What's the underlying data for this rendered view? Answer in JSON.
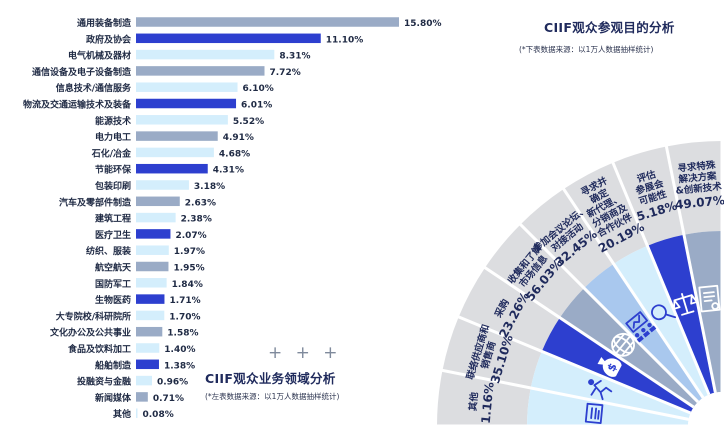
{
  "left_chart": {
    "title": "CIIF观众业务领域分析",
    "note": "(*左表数据来源：以1万人数据抽样统计)",
    "decoration": "+ + +"
  },
  "right_chart": {
    "title": "CIIF观众参观目的分析",
    "note": "(*下表数据来源：以1万人数据抽样统计)"
  },
  "chart_data": [
    {
      "type": "bar",
      "orientation": "horizontal",
      "title": "CIIF观众业务领域分析",
      "categories": [
        "通用装备制造",
        "政府及协会",
        "电气机械及器材",
        "通信设备及电子设备制造",
        "信息技术/通信服务",
        "物流及交通运输技术及装备",
        "能源技术",
        "电力电工",
        "石化/冶金",
        "节能环保",
        "包装印刷",
        "汽车及零部件制造",
        "建筑工程",
        "医疗卫生",
        "纺织、服装",
        "航空航天",
        "国防军工",
        "生物医药",
        "大专院校/科研院所",
        "文化办公及公共事业",
        "食品及饮料加工",
        "船舶制造",
        "投融资与金融",
        "新闻媒体",
        "其他"
      ],
      "values": [
        15.8,
        11.1,
        8.31,
        7.72,
        6.1,
        6.01,
        5.52,
        4.91,
        4.68,
        4.31,
        3.18,
        2.63,
        2.38,
        2.07,
        1.97,
        1.95,
        1.84,
        1.71,
        1.7,
        1.58,
        1.4,
        1.38,
        0.96,
        0.71,
        0.08
      ],
      "labels": [
        "15.80%",
        "11.10%",
        "8.31%",
        "7.72%",
        "6.10%",
        "6.01%",
        "5.52%",
        "4.91%",
        "4.68%",
        "4.31%",
        "3.18%",
        "2.63%",
        "2.38%",
        "2.07%",
        "1.97%",
        "1.95%",
        "1.84%",
        "1.71%",
        "1.70%",
        "1.58%",
        "1.40%",
        "1.38%",
        "0.96%",
        "0.71%",
        "0.08%"
      ],
      "colors": [
        "#9aabc6",
        "#2d3fcf",
        "#d4eefc",
        "#9aabc6",
        "#d4eefc",
        "#2d3fcf",
        "#d4eefc",
        "#9aabc6",
        "#d4eefc",
        "#2d3fcf",
        "#d4eefc",
        "#9aabc6",
        "#d4eefc",
        "#2d3fcf",
        "#d4eefc",
        "#9aabc6",
        "#d4eefc",
        "#2d3fcf",
        "#d4eefc",
        "#9aabc6",
        "#d4eefc",
        "#2d3fcf",
        "#d4eefc",
        "#9aabc6",
        "#d4eefc"
      ],
      "unit": "%",
      "grid": false,
      "legend": "none"
    },
    {
      "type": "pie",
      "style": "fan",
      "title": "CIIF观众参观目的分析",
      "categories": [
        "其他",
        "联络供应商和销售商",
        "采购",
        "收集和了解市场信息",
        "参加会议论坛、对接活动",
        "寻求并确定新代理、分销商及合作伙伴",
        "评估参展会可能性",
        "寻求特殊解决方案&创新技术"
      ],
      "label_lines": [
        [
          "其他"
        ],
        [
          "联络供应商和",
          "销售商"
        ],
        [
          "采购"
        ],
        [
          "收集和了解",
          "市场信息"
        ],
        [
          "参加会议论坛、",
          "对接活动"
        ],
        [
          "寻求并",
          "确定",
          "新代理、",
          "分销商及",
          "合作伙伴"
        ],
        [
          "评估",
          "参展会",
          "可能性"
        ],
        [
          "寻求特殊",
          "解决方案",
          "&创新技术"
        ]
      ],
      "values": [
        1.16,
        35.1,
        23.26,
        56.03,
        32.45,
        20.19,
        5.18,
        49.07
      ],
      "labels": [
        "1.16%",
        "35.10%",
        "23.26%",
        "56.03%",
        "32.45%",
        "20.19%",
        "5.18%",
        "49.07%"
      ],
      "band_colors": [
        "#d4eefc",
        "#d4eefc",
        "#2d3fcf",
        "#9aabc6",
        "#a9c8ee",
        "#d4eefc",
        "#2d3fcf",
        "#9aabc6"
      ],
      "icons": [
        "document-icon",
        "runner-icon",
        "money-bag-icon",
        "globe-icon",
        "meeting-icon",
        "magnifier-icon",
        "balance-scale-icon",
        "report-icon"
      ]
    }
  ]
}
